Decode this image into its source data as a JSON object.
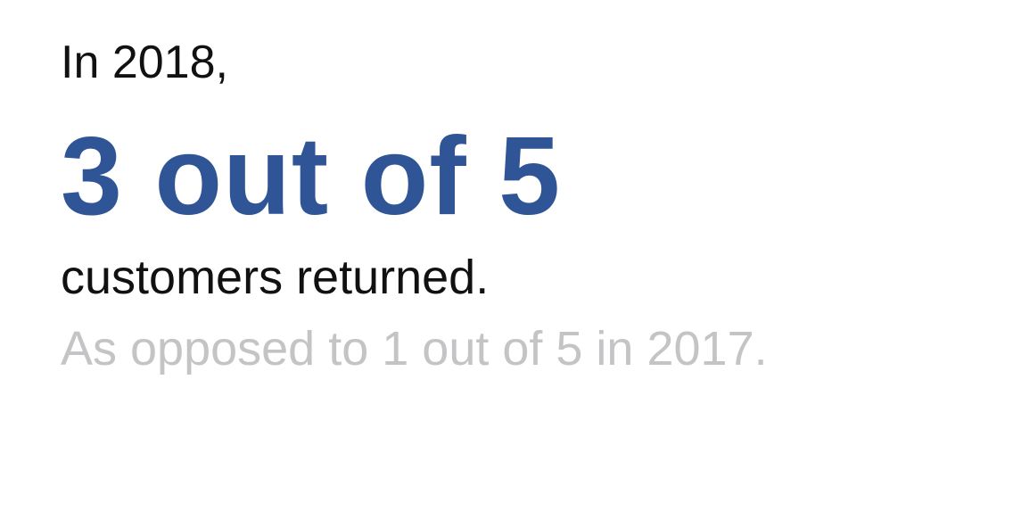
{
  "stat": {
    "intro": "In 2018,",
    "headline": "3 out of 5",
    "result": "customers returned.",
    "comparison": "As opposed to 1 out of 5 in 2017."
  },
  "colors": {
    "accent": "#2f5597",
    "text": "#111111",
    "muted": "#c4c4c6"
  }
}
